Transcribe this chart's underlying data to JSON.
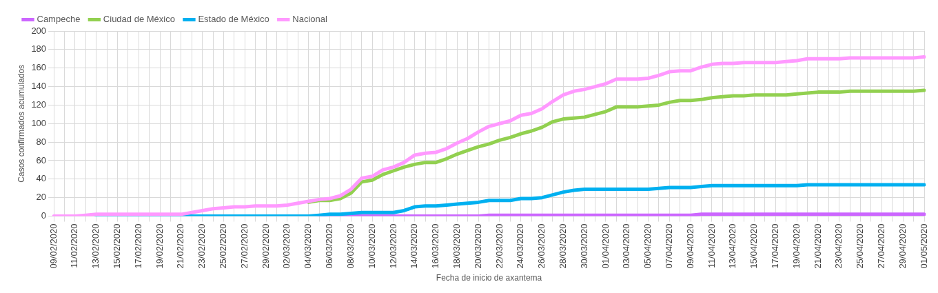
{
  "chart_data": {
    "type": "line",
    "xlabel": "Fecha de inicio de axantema",
    "ylabel": "Casos confirmados acumulados",
    "categories": [
      "09/02/2020",
      null,
      "11/02/2020",
      null,
      "13/02/2020",
      null,
      "15/02/2020",
      null,
      "17/02/2020",
      null,
      "19/02/2020",
      null,
      "21/02/2020",
      null,
      "23/02/2020",
      null,
      "25/02/2020",
      null,
      "27/02/2020",
      null,
      "29/02/2020",
      null,
      "02/03/2020",
      null,
      "04/03/2020",
      null,
      "06/03/2020",
      null,
      "08/03/2020",
      null,
      "10/03/2020",
      null,
      "12/03/2020",
      null,
      "14/03/2020",
      null,
      "16/03/2020",
      null,
      "18/03/2020",
      null,
      "20/03/2020",
      null,
      "22/03/2020",
      null,
      "24/03/2020",
      null,
      "26/03/2020",
      null,
      "28/03/2020",
      null,
      "30/03/2020",
      null,
      "01/04/2020",
      null,
      "03/04/2020",
      null,
      "05/04/2020",
      null,
      "07/04/2020",
      null,
      "09/04/2020",
      null,
      "11/04/2020",
      null,
      "13/04/2020",
      null,
      "15/04/2020",
      null,
      "17/04/2020",
      null,
      "19/04/2020",
      null,
      "21/04/2020",
      null,
      "23/04/2020",
      null,
      "25/04/2020",
      null,
      "27/04/2020",
      null,
      "29/04/2020",
      null,
      "01/05/2020"
    ],
    "series": [
      {
        "name": "Campeche",
        "color": "#cc66ff",
        "values": [
          null,
          null,
          null,
          null,
          null,
          null,
          null,
          null,
          null,
          null,
          null,
          null,
          null,
          null,
          null,
          null,
          null,
          null,
          null,
          null,
          null,
          null,
          null,
          null,
          null,
          0,
          0,
          0,
          0,
          0,
          0,
          0,
          0,
          0,
          0,
          0,
          0,
          0,
          0,
          0,
          0,
          1,
          1,
          1,
          1,
          1,
          1,
          1,
          1,
          1,
          1,
          1,
          1,
          1,
          1,
          1,
          1,
          1,
          1,
          1,
          1,
          2,
          2,
          2,
          2,
          2,
          2,
          2,
          2,
          2,
          2,
          2,
          2,
          2,
          2,
          2,
          2,
          2,
          2,
          2,
          2,
          2,
          2
        ]
      },
      {
        "name": "Ciudad de México",
        "color": "#92d050",
        "values": [
          null,
          null,
          null,
          null,
          null,
          null,
          null,
          null,
          null,
          null,
          null,
          null,
          null,
          null,
          null,
          null,
          null,
          null,
          null,
          null,
          null,
          null,
          null,
          null,
          15,
          17,
          17,
          19,
          25,
          37,
          39,
          45,
          49,
          53,
          56,
          58,
          58,
          62,
          67,
          71,
          75,
          78,
          82,
          85,
          89,
          92,
          96,
          102,
          105,
          106,
          107,
          110,
          113,
          118,
          118,
          118,
          119,
          120,
          123,
          125,
          125,
          126,
          128,
          129,
          130,
          130,
          131,
          131,
          131,
          131,
          132,
          133,
          134,
          134,
          134,
          135,
          135,
          135,
          135,
          135,
          135,
          135,
          136
        ]
      },
      {
        "name": "Estado de México",
        "color": "#00b0f0",
        "values": [
          null,
          null,
          null,
          null,
          0,
          0,
          0,
          0,
          0,
          0,
          0,
          0,
          0,
          0,
          0,
          0,
          0,
          0,
          0,
          0,
          0,
          0,
          0,
          0,
          0,
          1,
          2,
          2,
          3,
          4,
          4,
          4,
          4,
          6,
          10,
          11,
          11,
          12,
          13,
          14,
          15,
          17,
          17,
          17,
          19,
          19,
          20,
          23,
          26,
          28,
          29,
          29,
          29,
          29,
          29,
          29,
          29,
          30,
          31,
          31,
          31,
          32,
          33,
          33,
          33,
          33,
          33,
          33,
          33,
          33,
          33,
          34,
          34,
          34,
          34,
          34,
          34,
          34,
          34,
          34,
          34,
          34,
          34
        ]
      },
      {
        "name": "Nacional",
        "color": "#ff99ff",
        "values": [
          0,
          0,
          0,
          1,
          2,
          2,
          2,
          2,
          2,
          2,
          2,
          2,
          2,
          4,
          6,
          8,
          9,
          10,
          10,
          11,
          11,
          11,
          12,
          14,
          16,
          18,
          19,
          22,
          29,
          41,
          43,
          50,
          53,
          58,
          66,
          68,
          69,
          73,
          79,
          84,
          91,
          97,
          100,
          103,
          109,
          111,
          116,
          124,
          131,
          135,
          137,
          140,
          143,
          148,
          148,
          148,
          149,
          152,
          156,
          157,
          157,
          161,
          164,
          165,
          165,
          166,
          166,
          166,
          166,
          167,
          168,
          170,
          170,
          170,
          170,
          171,
          171,
          171,
          171,
          171,
          171,
          171,
          172
        ]
      }
    ],
    "ylim": [
      0,
      200
    ],
    "yticks": [
      0,
      20,
      40,
      60,
      80,
      100,
      120,
      140,
      160,
      180,
      200
    ],
    "grid": true,
    "legend": "top left",
    "marker": "none",
    "line_style": "solid"
  }
}
